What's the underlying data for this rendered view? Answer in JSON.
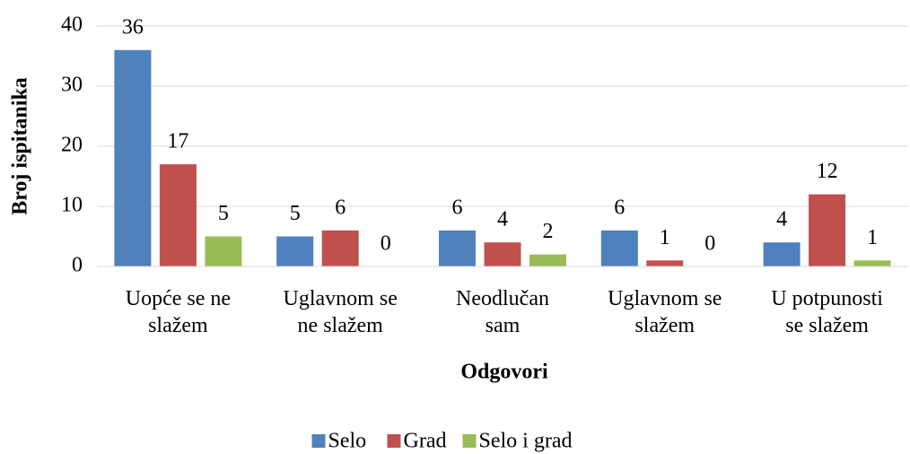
{
  "chart_data": {
    "type": "bar",
    "y_label": "Broj ispitanika",
    "x_label": "Odgovori",
    "categories": [
      [
        "Uopće se ne",
        "slažem"
      ],
      [
        "Uglavnom se",
        "ne slažem"
      ],
      [
        "Neodlučan",
        "sam"
      ],
      [
        "Uglavnom se",
        "slažem"
      ],
      [
        "U potpunosti",
        "se slažem"
      ]
    ],
    "series": [
      {
        "name": "Selo",
        "color": "#4f81bd",
        "values": [
          36,
          5,
          6,
          6,
          4
        ]
      },
      {
        "name": "Grad",
        "color": "#c0504d",
        "values": [
          17,
          6,
          4,
          1,
          12
        ]
      },
      {
        "name": "Selo i grad",
        "color": "#9bbb59",
        "values": [
          5,
          0,
          2,
          0,
          1
        ]
      }
    ],
    "ylim": [
      0,
      40
    ],
    "yticks": [
      0,
      10,
      20,
      30,
      40
    ],
    "grid": true,
    "legend": "bottom"
  }
}
